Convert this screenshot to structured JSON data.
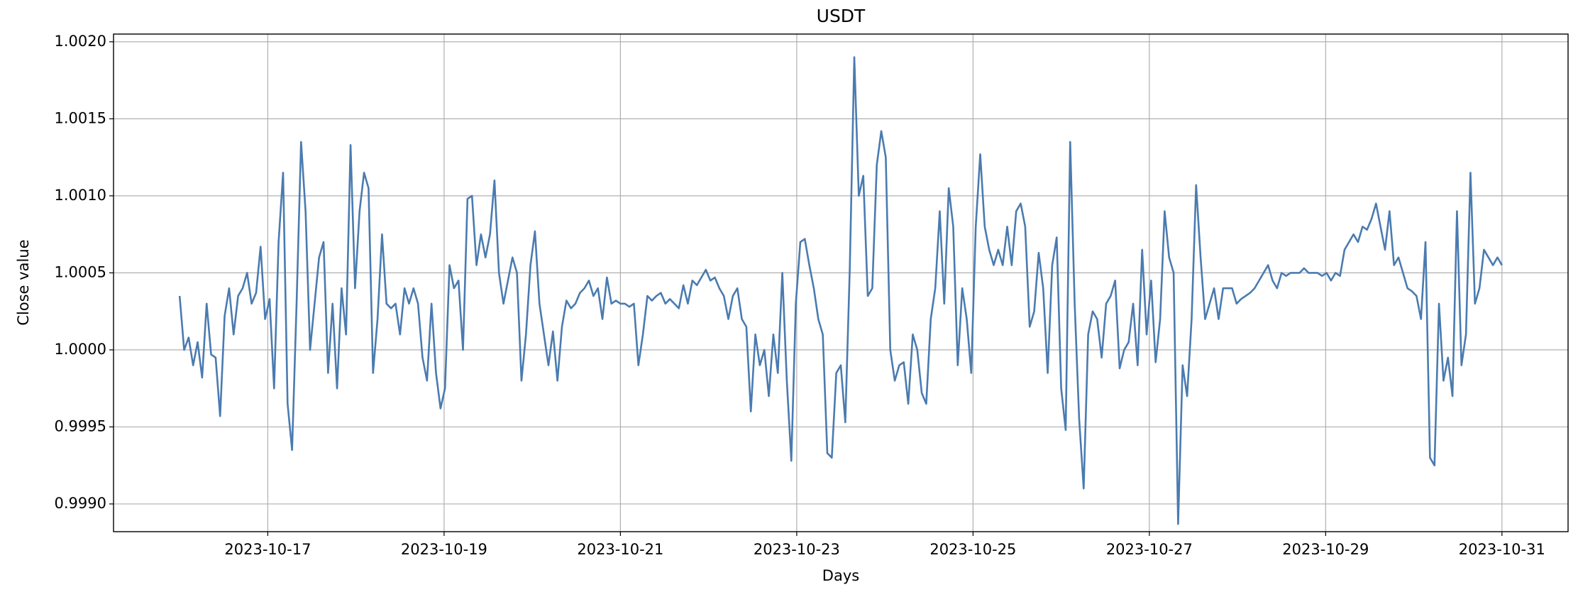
{
  "chart_data": {
    "type": "line",
    "title": "USDT",
    "x_label": "Days",
    "y_label": "Close value",
    "xlim": [
      "2023-10-16",
      "2023-10-31"
    ],
    "xticks": [
      "2023-10-17",
      "2023-10-19",
      "2023-10-21",
      "2023-10-23",
      "2023-10-25",
      "2023-10-27",
      "2023-10-29",
      "2023-10-31"
    ],
    "ylim": [
      0.99882,
      1.00205
    ],
    "yticks": [
      {
        "value": 0.999,
        "label": "0.9990"
      },
      {
        "value": 0.9995,
        "label": "0.9995"
      },
      {
        "value": 1.0,
        "label": "1.0000"
      },
      {
        "value": 1.0005,
        "label": "1.0005"
      },
      {
        "value": 1.001,
        "label": "1.0010"
      },
      {
        "value": 1.0015,
        "label": "1.0015"
      },
      {
        "value": 1.002,
        "label": "1.0020"
      }
    ],
    "grid": true,
    "series": [
      {
        "color": "#4a7bb0",
        "values": [
          1.00035,
          1.0,
          1.00008,
          0.9999,
          1.00005,
          0.99982,
          1.0003,
          0.99997,
          0.99995,
          0.99957,
          1.00022,
          1.0004,
          1.0001,
          1.00035,
          1.0004,
          1.0005,
          1.0003,
          1.00037,
          1.00067,
          1.0002,
          1.00033,
          0.99975,
          1.0007,
          1.00115,
          0.99965,
          0.99935,
          1.0003,
          1.00135,
          1.0009,
          1.0,
          1.0003,
          1.0006,
          1.0007,
          0.99985,
          1.0003,
          0.99975,
          1.0004,
          1.0001,
          1.00133,
          1.0004,
          1.0009,
          1.00115,
          1.00105,
          0.99985,
          1.0002,
          1.00075,
          1.0003,
          1.00027,
          1.0003,
          1.0001,
          1.0004,
          1.0003,
          1.0004,
          1.0003,
          0.99995,
          0.9998,
          1.0003,
          0.99985,
          0.99962,
          0.99975,
          1.00055,
          1.0004,
          1.00045,
          1.0,
          1.00098,
          1.001,
          1.00055,
          1.00075,
          1.0006,
          1.00075,
          1.0011,
          1.0005,
          1.0003,
          1.00045,
          1.0006,
          1.0005,
          0.9998,
          1.0001,
          1.00055,
          1.00077,
          1.0003,
          1.0001,
          0.9999,
          1.00012,
          0.9998,
          1.00015,
          1.00032,
          1.00027,
          1.0003,
          1.00037,
          1.0004,
          1.00045,
          1.00035,
          1.0004,
          1.0002,
          1.00047,
          1.0003,
          1.00032,
          1.0003,
          1.0003,
          1.00028,
          1.0003,
          0.9999,
          1.0001,
          1.00035,
          1.00032,
          1.00035,
          1.00037,
          1.0003,
          1.00033,
          1.0003,
          1.00027,
          1.00042,
          1.0003,
          1.00045,
          1.00042,
          1.00047,
          1.00052,
          1.00045,
          1.00047,
          1.0004,
          1.00035,
          1.0002,
          1.00035,
          1.0004,
          1.0002,
          1.00015,
          0.9996,
          1.0001,
          0.9999,
          1.0,
          0.9997,
          1.0001,
          0.99985,
          1.0005,
          0.9998,
          0.99928,
          1.0003,
          1.0007,
          1.00072,
          1.00055,
          1.0004,
          1.0002,
          1.0001,
          0.99933,
          0.9993,
          0.99985,
          0.9999,
          0.99953,
          1.00053,
          1.0019,
          1.001,
          1.00113,
          1.00035,
          1.0004,
          1.0012,
          1.00142,
          1.00125,
          1.0,
          0.9998,
          0.9999,
          0.99992,
          0.99965,
          1.0001,
          1.0,
          0.99972,
          0.99965,
          1.0002,
          1.0004,
          1.0009,
          1.0003,
          1.00105,
          1.0008,
          0.9999,
          1.0004,
          1.0002,
          0.99985,
          1.0008,
          1.00127,
          1.0008,
          1.00065,
          1.00055,
          1.00065,
          1.00055,
          1.0008,
          1.00055,
          1.0009,
          1.00095,
          1.0008,
          1.00015,
          1.00025,
          1.00063,
          1.0004,
          0.99985,
          1.00055,
          1.00073,
          0.99975,
          0.99948,
          1.00135,
          1.0003,
          0.99955,
          0.9991,
          1.0001,
          1.00025,
          1.0002,
          0.99995,
          1.0003,
          1.00035,
          1.00045,
          0.99988,
          1.0,
          1.00005,
          1.0003,
          0.9999,
          1.00065,
          1.0001,
          1.00045,
          0.99992,
          1.0002,
          1.0009,
          1.0006,
          1.0005,
          0.99887,
          0.9999,
          0.9997,
          1.0002,
          1.00107,
          1.0006,
          1.0002,
          1.0003,
          1.0004,
          1.0002,
          1.0004,
          1.0004,
          1.0004,
          1.0003,
          1.00033,
          1.00035,
          1.00037,
          1.0004,
          1.00045,
          1.0005,
          1.00055,
          1.00045,
          1.0004,
          1.0005,
          1.00048,
          1.0005,
          1.0005,
          1.0005,
          1.00053,
          1.0005,
          1.0005,
          1.0005,
          1.00048,
          1.0005,
          1.00045,
          1.0005,
          1.00048,
          1.00065,
          1.0007,
          1.00075,
          1.0007,
          1.0008,
          1.00078,
          1.00085,
          1.00095,
          1.0008,
          1.00065,
          1.0009,
          1.00055,
          1.0006,
          1.0005,
          1.0004,
          1.00038,
          1.00035,
          1.0002,
          1.0007,
          0.9993,
          0.99925,
          1.0003,
          0.9998,
          0.99995,
          0.9997,
          1.0009,
          0.9999,
          1.0001,
          1.00115,
          1.0003,
          1.0004,
          1.00065,
          1.0006,
          1.00055,
          1.0006,
          1.00055
        ]
      }
    ]
  }
}
